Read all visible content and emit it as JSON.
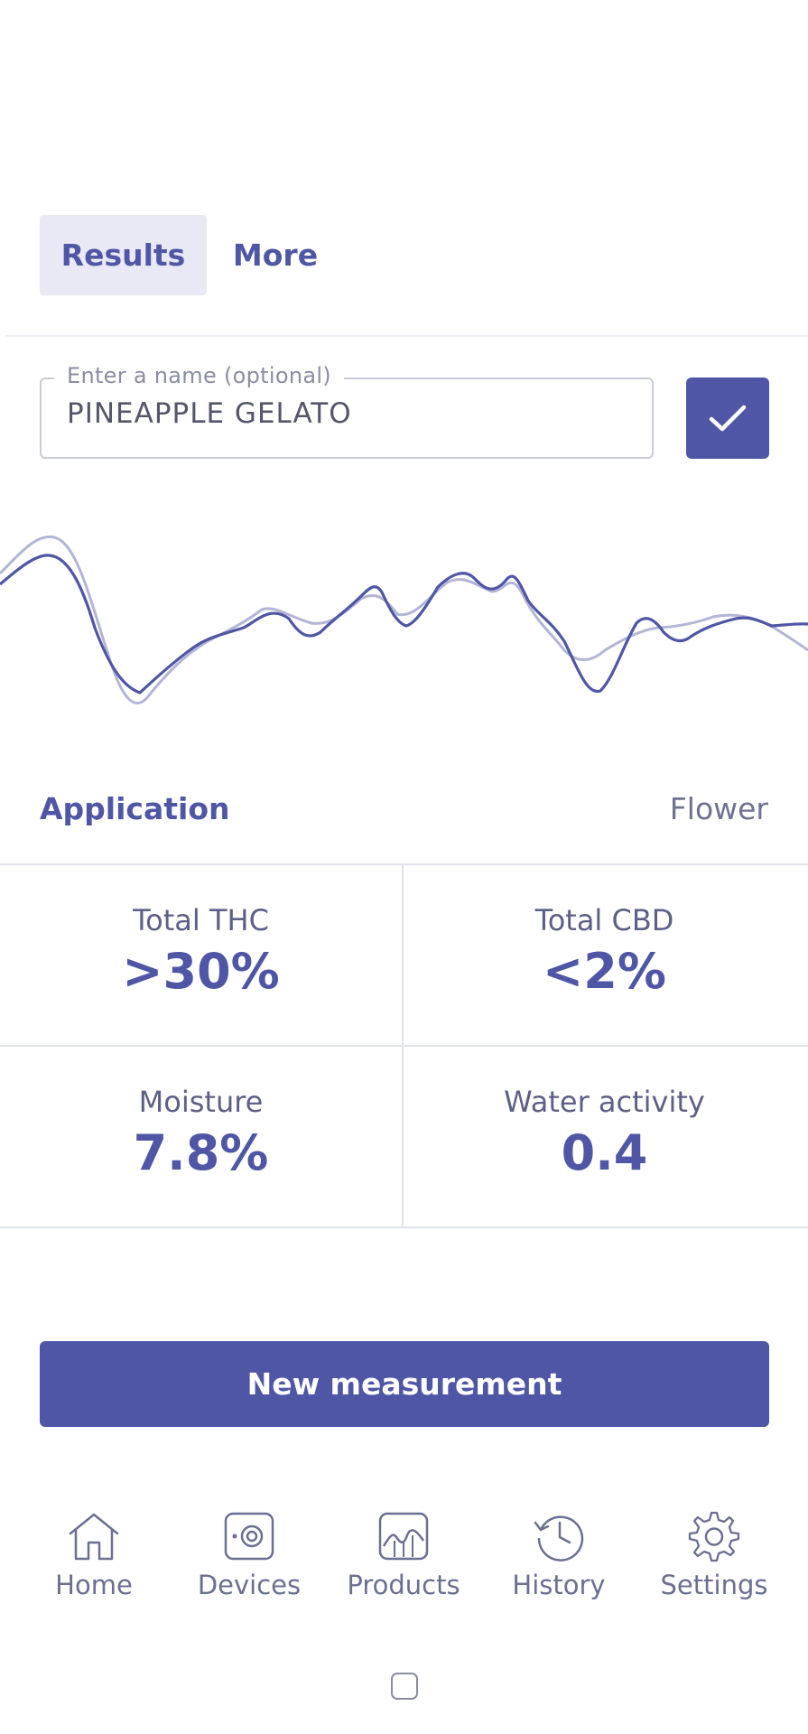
{
  "tabs": [
    {
      "label": "Results",
      "active": true
    },
    {
      "label": "More",
      "active": false
    }
  ],
  "name_field": {
    "legend": "Enter a name (optional)",
    "value": "PINEAPPLE GELATO"
  },
  "confirm_icon": "check-icon",
  "application": {
    "label": "Application",
    "value": "Flower"
  },
  "metrics": [
    {
      "label": "Total THC",
      "value": ">30%"
    },
    {
      "label": "Total CBD",
      "value": "<2%"
    },
    {
      "label": "Moisture",
      "value": "7.8%"
    },
    {
      "label": "Water activity",
      "value": "0.4"
    }
  ],
  "new_measurement_label": "New measurement",
  "nav": [
    {
      "label": "Home",
      "icon": "home-icon"
    },
    {
      "label": "Devices",
      "icon": "device-icon"
    },
    {
      "label": "Products",
      "icon": "products-icon"
    },
    {
      "label": "History",
      "icon": "history-icon"
    },
    {
      "label": "Settings",
      "icon": "gear-icon"
    }
  ],
  "colors": {
    "accent": "#4f56a5",
    "tab_active_bg": "#e8e9f5",
    "spectrum_reference": "#b3b5d6"
  }
}
